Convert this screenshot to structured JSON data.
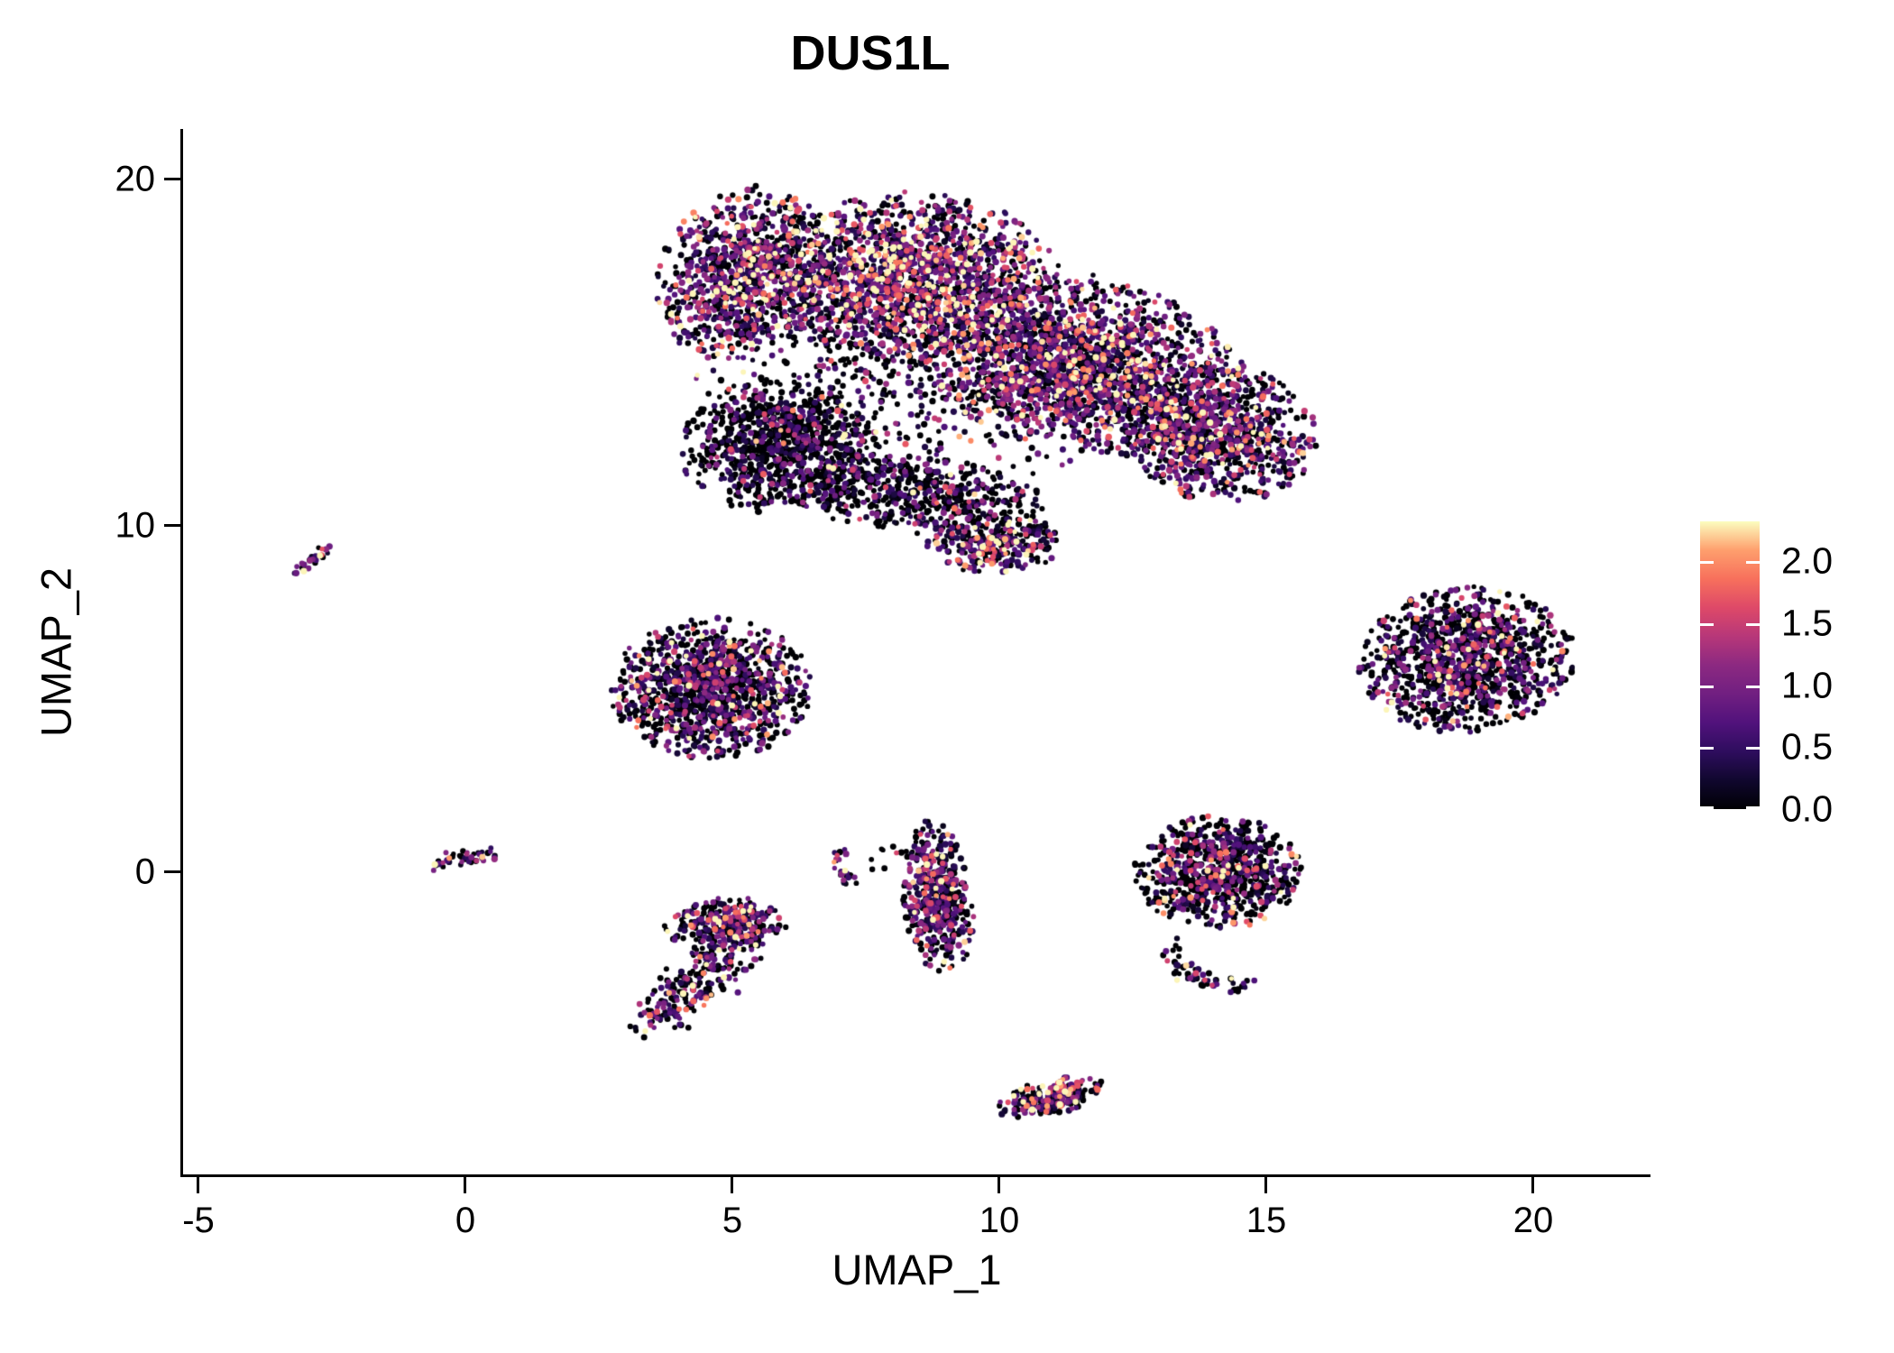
{
  "title": "DUS1L",
  "chart_data": {
    "type": "scatter",
    "title": "DUS1L",
    "xlabel": "UMAP_1",
    "ylabel": "UMAP_2",
    "xlim": [
      -5.287,
      22.196
    ],
    "ylim": [
      -8.724,
      21.458
    ],
    "x_ticks": {
      "values": [
        -5,
        0,
        5,
        10,
        15,
        20
      ],
      "labels": [
        "-5",
        "0",
        "5",
        "10",
        "15",
        "20"
      ]
    },
    "y_ticks": {
      "values": [
        0,
        10,
        20
      ],
      "labels": [
        "0",
        "10",
        "20"
      ]
    },
    "grid": false,
    "background": "#ffffff",
    "axis_color": "#000000",
    "point_radius_px": 3.2,
    "legend": {
      "position": "right",
      "scale_min": 0.0,
      "scale_max": 2.32,
      "tick_values": [
        0.0,
        0.5,
        1.0,
        1.5,
        2.0
      ],
      "tick_labels": [
        "0.0",
        "0.5",
        "1.0",
        "1.5",
        "2.0"
      ],
      "colormap": "magma",
      "colormap_stops": [
        {
          "t": 0.0,
          "color": "#000004"
        },
        {
          "t": 0.1,
          "color": "#10072e"
        },
        {
          "t": 0.2,
          "color": "#2e0d5e"
        },
        {
          "t": 0.3,
          "color": "#51127c"
        },
        {
          "t": 0.4,
          "color": "#711f81"
        },
        {
          "t": 0.5,
          "color": "#8c2981"
        },
        {
          "t": 0.6,
          "color": "#b73779"
        },
        {
          "t": 0.7,
          "color": "#de4968"
        },
        {
          "t": 0.8,
          "color": "#f7705c"
        },
        {
          "t": 0.9,
          "color": "#fe9f6d"
        },
        {
          "t": 1.0,
          "color": "#fcfdbf"
        }
      ]
    },
    "clusters": [
      {
        "name": "main-top-left-lobe",
        "kind": "blob",
        "seed": 11,
        "cx": 5.2,
        "cy": 17.3,
        "rx": 1.55,
        "ry": 2.5,
        "rot": -12,
        "n": 950,
        "p0": 0.3,
        "mean": 0.95
      },
      {
        "name": "main-top-band",
        "kind": "blob",
        "seed": 12,
        "cx": 8.4,
        "cy": 17.2,
        "rx": 2.7,
        "ry": 2.4,
        "rot": 0,
        "n": 1500,
        "p0": 0.2,
        "mean": 1.05
      },
      {
        "name": "main-mid-right",
        "kind": "blob",
        "seed": 13,
        "cx": 11.6,
        "cy": 14.6,
        "rx": 3.0,
        "ry": 2.4,
        "rot": -18,
        "n": 1700,
        "p0": 0.25,
        "mean": 0.95
      },
      {
        "name": "main-right-lobe",
        "kind": "blob",
        "seed": 14,
        "cx": 14.1,
        "cy": 12.7,
        "rx": 1.8,
        "ry": 2.0,
        "rot": 25,
        "n": 950,
        "p0": 0.38,
        "mean": 0.8
      },
      {
        "name": "main-lower-left",
        "kind": "blob",
        "seed": 15,
        "cx": 5.9,
        "cy": 12.3,
        "rx": 1.9,
        "ry": 1.9,
        "rot": 0,
        "n": 950,
        "p0": 0.62,
        "mean": 0.6
      },
      {
        "name": "main-bottom-mid",
        "kind": "blob",
        "seed": 16,
        "cx": 8.4,
        "cy": 10.9,
        "rx": 2.4,
        "ry": 1.1,
        "rot": -8,
        "n": 520,
        "p0": 0.55,
        "mean": 0.65
      },
      {
        "name": "main-bottom-tip",
        "kind": "blob",
        "seed": 17,
        "cx": 9.9,
        "cy": 9.5,
        "rx": 1.25,
        "ry": 0.85,
        "rot": 0,
        "n": 300,
        "p0": 0.3,
        "mean": 0.95
      },
      {
        "name": "main-fill",
        "kind": "blob",
        "seed": 18,
        "cx": 8.8,
        "cy": 14.9,
        "rx": 4.6,
        "ry": 3.5,
        "rot": -12,
        "n": 800,
        "p0": 0.5,
        "mean": 0.7
      },
      {
        "name": "mid-left-cluster",
        "kind": "blob",
        "seed": 19,
        "cx": 4.6,
        "cy": 5.3,
        "rx": 1.85,
        "ry": 2.0,
        "rot": -5,
        "n": 1150,
        "p0": 0.45,
        "mean": 0.8
      },
      {
        "name": "right-ellipse-cluster",
        "kind": "blob",
        "seed": 20,
        "cx": 18.75,
        "cy": 6.15,
        "rx": 1.95,
        "ry": 2.1,
        "rot": -30,
        "n": 1150,
        "p0": 0.5,
        "mean": 0.8
      },
      {
        "name": "sw-upper-lobe",
        "kind": "blob",
        "seed": 21,
        "cx": 4.9,
        "cy": -1.5,
        "rx": 1.15,
        "ry": 0.75,
        "rot": 5,
        "n": 280,
        "p0": 0.45,
        "mean": 1.0
      },
      {
        "name": "center-vertical-cluster",
        "kind": "blob",
        "seed": 22,
        "cx": 8.85,
        "cy": -0.75,
        "rx": 0.65,
        "ry": 2.2,
        "rot": 4,
        "n": 480,
        "p0": 0.35,
        "mean": 0.78
      },
      {
        "name": "right-round-cluster",
        "kind": "blob",
        "seed": 23,
        "cx": 14.1,
        "cy": 0.0,
        "rx": 1.55,
        "ry": 1.6,
        "rot": 0,
        "n": 820,
        "p0": 0.5,
        "mean": 0.85
      },
      {
        "name": "bottom-small-cluster",
        "kind": "blob",
        "seed": 24,
        "cx": 10.95,
        "cy": -6.5,
        "rx": 1.05,
        "ry": 0.48,
        "rot": 22,
        "n": 230,
        "p0": 0.35,
        "mean": 1.05
      },
      {
        "name": "vertical-cluster-strays",
        "kind": "blob",
        "seed": 25,
        "cx": 7.9,
        "cy": 0.5,
        "rx": 0.55,
        "ry": 0.5,
        "rot": 0,
        "n": 10,
        "p0": 0.5,
        "mean": 0.9
      },
      {
        "name": "far-left-streak",
        "kind": "line",
        "seed": 26,
        "x1": -3.2,
        "y1": 8.65,
        "x2": -2.55,
        "y2": 9.4,
        "jitter": 0.07,
        "n": 24,
        "p0": 0.15,
        "mean": 1.15
      },
      {
        "name": "origin-blob",
        "kind": "line",
        "seed": 27,
        "x1": -0.55,
        "y1": 0.2,
        "x2": 0.5,
        "y2": 0.55,
        "jitter": 0.1,
        "n": 46,
        "p0": 0.3,
        "mean": 0.9
      },
      {
        "name": "sw-lower-tail",
        "kind": "line",
        "seed": 28,
        "x1": 3.6,
        "y1": -4.35,
        "x2": 5.0,
        "y2": -2.1,
        "jitter": 0.28,
        "n": 240,
        "p0": 0.42,
        "mean": 1.0
      },
      {
        "name": "small-arc",
        "kind": "arc",
        "seed": 29,
        "cx": 7.35,
        "cy": 0.2,
        "r": 0.45,
        "a1": 100,
        "a2": 260,
        "jitter": 0.07,
        "n": 26,
        "p0": 0.18,
        "mean": 1.2
      },
      {
        "name": "right-round-tail",
        "kind": "arc",
        "seed": 30,
        "cx": 14.35,
        "cy": -2.1,
        "r": 1.15,
        "a1": 180,
        "a2": 285,
        "jitter": 0.1,
        "n": 60,
        "p0": 0.45,
        "mean": 0.8
      }
    ]
  }
}
